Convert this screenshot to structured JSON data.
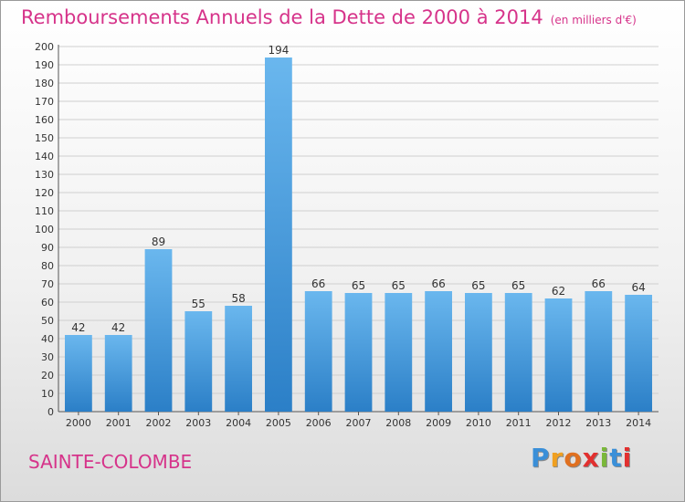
{
  "title": "Remboursements Annuels de la Dette de 2000 à 2014",
  "subtitle": "(en milliers d'€)",
  "commune": "SAINTE-COLOMBE",
  "brand": {
    "letters": [
      "P",
      "r",
      "o",
      "x",
      "i",
      "t",
      "i"
    ],
    "colors": [
      "#3a8fd8",
      "#f0a020",
      "#e07020",
      "#e2302f",
      "#7ab83a",
      "#3a8fd8",
      "#e2302f"
    ]
  },
  "colors": {
    "bar_light": "#6ab7ee",
    "bar_dark": "#2b7fc7",
    "title": "#d6338a",
    "grid": "#cfcfcf"
  },
  "chart_data": {
    "type": "bar",
    "categories": [
      "2000",
      "2001",
      "2002",
      "2003",
      "2004",
      "2005",
      "2006",
      "2007",
      "2008",
      "2009",
      "2010",
      "2011",
      "2012",
      "2013",
      "2014"
    ],
    "values": [
      42,
      42,
      89,
      55,
      58,
      194,
      66,
      65,
      65,
      66,
      65,
      65,
      62,
      66,
      64
    ],
    "ylim": [
      0,
      200
    ],
    "ytick_step": 10,
    "grid": true,
    "xlabel": "",
    "ylabel": ""
  }
}
